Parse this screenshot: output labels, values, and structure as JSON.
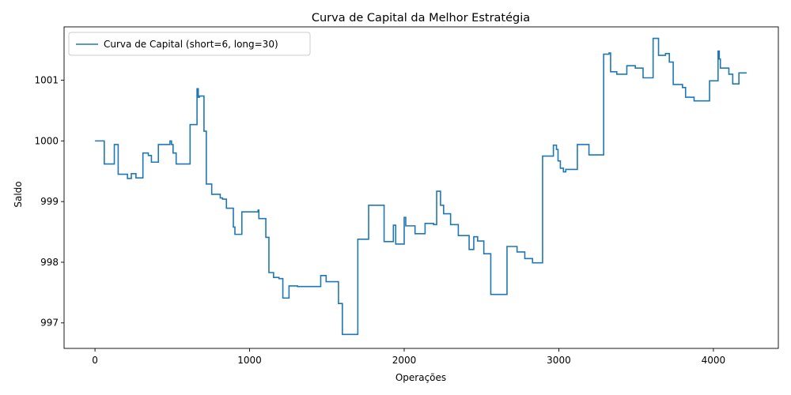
{
  "chart_data": {
    "type": "line",
    "title": "Curva de Capital da Melhor Estratégia",
    "xlabel": "Operações",
    "ylabel": "Saldo",
    "xlim": [
      -200,
      4420
    ],
    "ylim": [
      996.58,
      1001.88
    ],
    "xticks": [
      0,
      1000,
      2000,
      3000,
      4000
    ],
    "xtick_labels": [
      "0",
      "1000",
      "2000",
      "3000",
      "4000"
    ],
    "yticks": [
      997,
      998,
      999,
      1000,
      1001
    ],
    "ytick_labels": [
      "997",
      "998",
      "999",
      "1000",
      "1001"
    ],
    "grid": false,
    "legend_position": "top-left",
    "series": [
      {
        "name": "Curva de Capital (short=6, long=30)",
        "color": "#1f77b4",
        "step": true,
        "x": [
          0,
          60,
          125,
          150,
          210,
          235,
          265,
          310,
          345,
          365,
          410,
          485,
          495,
          505,
          525,
          615,
          660,
          668,
          675,
          705,
          720,
          755,
          810,
          825,
          850,
          895,
          905,
          950,
          1055,
          1060,
          1105,
          1125,
          1155,
          1190,
          1215,
          1255,
          1310,
          1325,
          1460,
          1495,
          1575,
          1600,
          1700,
          1770,
          1870,
          1930,
          1945,
          2000,
          2010,
          2070,
          2090,
          2135,
          2190,
          2210,
          2225,
          2235,
          2255,
          2300,
          2310,
          2350,
          2420,
          2450,
          2475,
          2485,
          2515,
          2560,
          2600,
          2665,
          2730,
          2780,
          2830,
          2895,
          2915,
          2965,
          2985,
          2995,
          3010,
          3030,
          3045,
          3120,
          3195,
          3290,
          3325,
          3335,
          3335,
          3375,
          3440,
          3495,
          3510,
          3545,
          3610,
          3645,
          3690,
          3715,
          3740,
          3800,
          3820,
          3840,
          3875,
          3975,
          4030,
          4038,
          4045,
          4100,
          4125,
          4165,
          4215
        ],
        "y": [
          1000.0,
          999.62,
          999.94,
          999.45,
          999.38,
          999.46,
          999.39,
          999.8,
          999.76,
          999.65,
          999.94,
          1000.0,
          999.94,
          999.8,
          999.62,
          1000.27,
          1000.86,
          1000.72,
          1000.74,
          1000.16,
          999.29,
          999.12,
          999.06,
          999.04,
          998.89,
          998.58,
          998.46,
          998.83,
          998.86,
          998.72,
          998.41,
          997.83,
          997.75,
          997.73,
          997.41,
          997.61,
          997.6,
          997.6,
          997.78,
          997.68,
          997.32,
          996.81,
          998.38,
          998.94,
          998.34,
          998.61,
          998.3,
          998.74,
          998.6,
          998.47,
          998.47,
          998.64,
          998.62,
          999.17,
          999.17,
          998.94,
          998.8,
          998.62,
          998.62,
          998.44,
          998.21,
          998.42,
          998.35,
          998.35,
          998.14,
          997.47,
          997.47,
          998.26,
          998.17,
          998.06,
          997.99,
          999.75,
          999.75,
          999.93,
          999.86,
          999.67,
          999.55,
          999.49,
          999.53,
          999.94,
          999.77,
          1001.43,
          1001.45,
          1001.45,
          1001.14,
          1001.1,
          1001.24,
          1001.2,
          1001.2,
          1001.04,
          1001.69,
          1001.41,
          1001.44,
          1001.3,
          1000.93,
          1000.88,
          1000.72,
          1000.72,
          1000.66,
          1000.99,
          1001.48,
          1001.35,
          1001.2,
          1001.1,
          1000.94,
          1001.12,
          1001.12
        ]
      }
    ]
  }
}
